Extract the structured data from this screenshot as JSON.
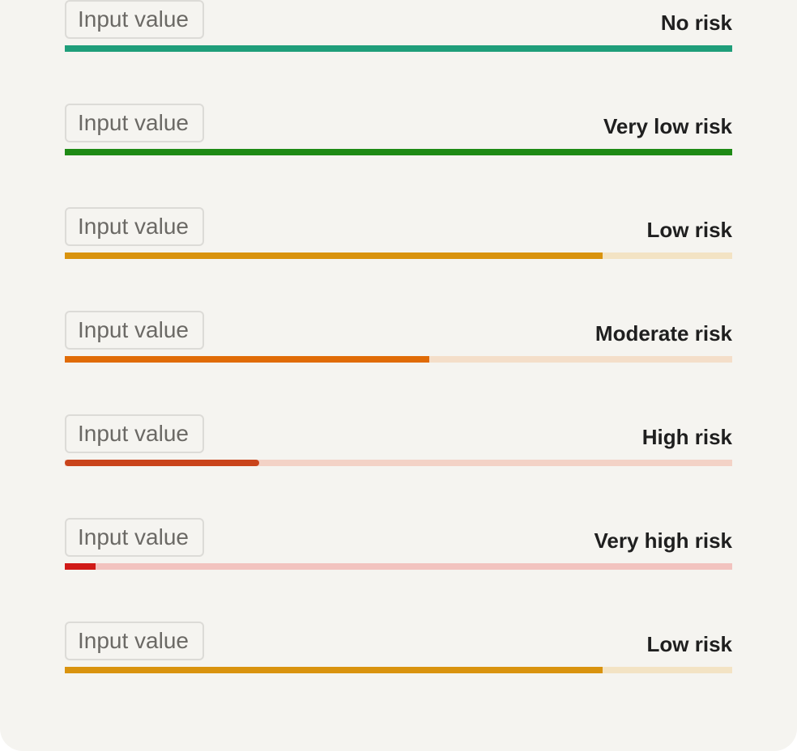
{
  "placeholder": "Input value",
  "rows": [
    {
      "label": "No risk",
      "level": 1.0,
      "fill_color": "#1f9e7a",
      "track_color": "#1f9e7a"
    },
    {
      "label": "Very low risk",
      "level": 1.0,
      "fill_color": "#1e8a15",
      "track_color": "#1e8a15"
    },
    {
      "label": "Low risk",
      "level": 0.806,
      "fill_color": "#d9930e",
      "track_color": "#f3e3c4"
    },
    {
      "label": "Moderate risk",
      "level": 0.546,
      "fill_color": "#e06b06",
      "track_color": "#f4dec9"
    },
    {
      "label": "High risk",
      "level": 0.291,
      "fill_color": "#c9441b",
      "track_color": "#f3d2c6",
      "rounded": true
    },
    {
      "label": "Very high risk",
      "level": 0.046,
      "fill_color": "#d01a17",
      "track_color": "#f2c3bf"
    },
    {
      "label": "Low risk",
      "level": 0.806,
      "fill_color": "#d9930e",
      "track_color": "#f3e3c4"
    }
  ]
}
